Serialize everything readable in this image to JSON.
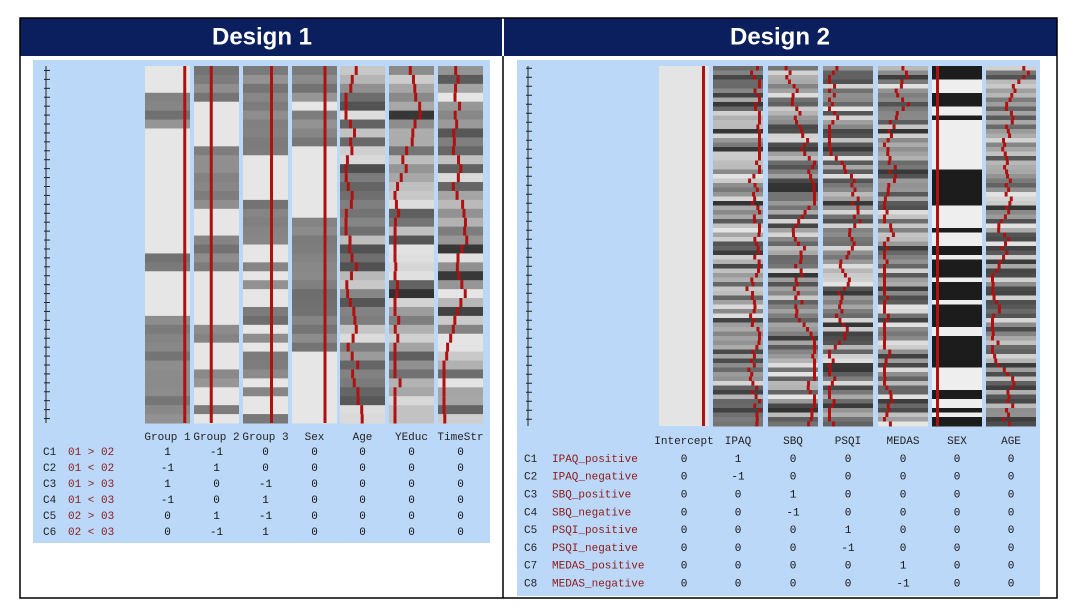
{
  "design1": {
    "title": "Design 1",
    "columns": [
      "Group 1",
      "Group 2",
      "Group 3",
      "Sex",
      "Age",
      "YEduc",
      "TimeStr"
    ],
    "contrasts": [
      {
        "id": "C1",
        "name": "01 > 02",
        "weights": [
          1,
          -1,
          0,
          0,
          0,
          0,
          0
        ]
      },
      {
        "id": "C2",
        "name": "01 < 02",
        "weights": [
          -1,
          1,
          0,
          0,
          0,
          0,
          0
        ]
      },
      {
        "id": "C3",
        "name": "01 > 03",
        "weights": [
          1,
          0,
          -1,
          0,
          0,
          0,
          0
        ]
      },
      {
        "id": "C4",
        "name": "01 < 03",
        "weights": [
          -1,
          0,
          1,
          0,
          0,
          0,
          0
        ]
      },
      {
        "id": "C5",
        "name": "02 > 03",
        "weights": [
          0,
          1,
          -1,
          0,
          0,
          0,
          0
        ]
      },
      {
        "id": "C6",
        "name": "02 < 03",
        "weights": [
          0,
          -1,
          1,
          0,
          0,
          0,
          0
        ]
      }
    ]
  },
  "design2": {
    "title": "Design 2",
    "columns": [
      "Intercept",
      "IPAQ",
      "SBQ",
      "PSQI",
      "MEDAS",
      "SEX",
      "AGE"
    ],
    "contrasts": [
      {
        "id": "C1",
        "name": "IPAQ_positive",
        "weights": [
          0,
          1,
          0,
          0,
          0,
          0,
          0
        ]
      },
      {
        "id": "C2",
        "name": "IPAQ_negative",
        "weights": [
          0,
          -1,
          0,
          0,
          0,
          0,
          0
        ]
      },
      {
        "id": "C3",
        "name": "SBQ_positive",
        "weights": [
          0,
          0,
          1,
          0,
          0,
          0,
          0
        ]
      },
      {
        "id": "C4",
        "name": "SBQ_negative",
        "weights": [
          0,
          0,
          -1,
          0,
          0,
          0,
          0
        ]
      },
      {
        "id": "C5",
        "name": "PSQI_positive",
        "weights": [
          0,
          0,
          0,
          1,
          0,
          0,
          0
        ]
      },
      {
        "id": "C6",
        "name": "PSQI_negative",
        "weights": [
          0,
          0,
          0,
          -1,
          0,
          0,
          0
        ]
      },
      {
        "id": "C7",
        "name": "MEDAS_positive",
        "weights": [
          0,
          0,
          0,
          0,
          1,
          0,
          0
        ]
      },
      {
        "id": "C8",
        "name": "MEDAS_negative",
        "weights": [
          0,
          0,
          0,
          0,
          -1,
          0,
          0
        ]
      }
    ]
  }
}
